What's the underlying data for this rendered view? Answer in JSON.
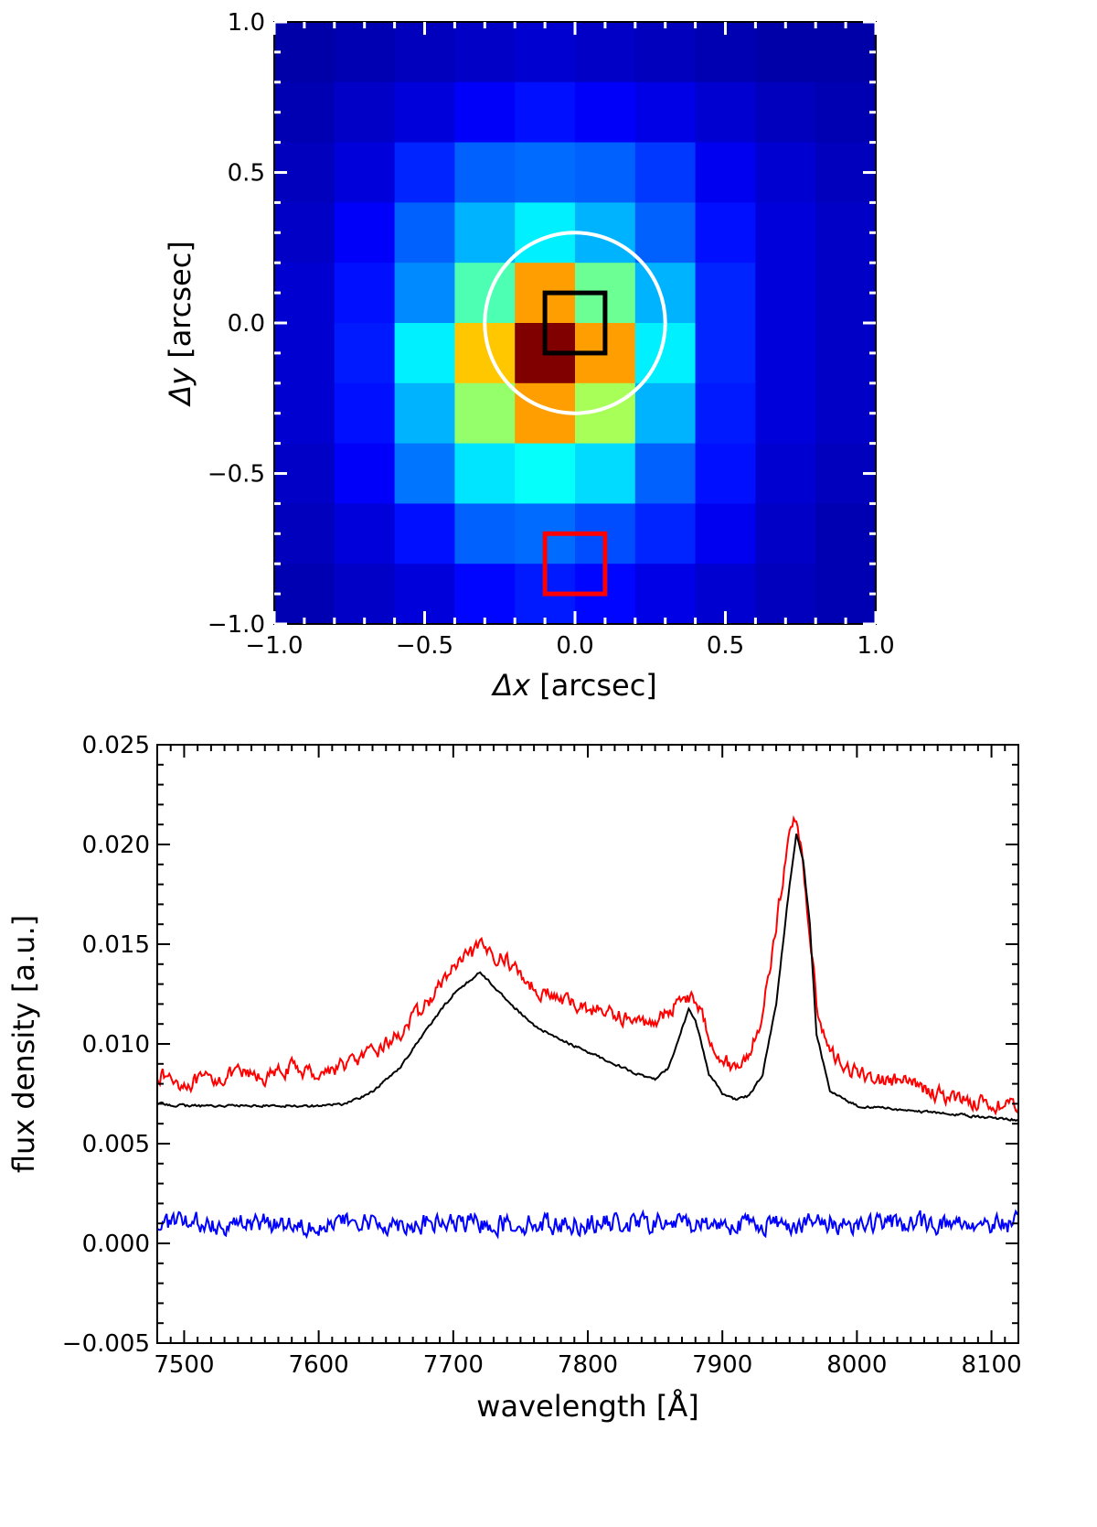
{
  "chart_data": [
    {
      "type": "heatmap",
      "title": "",
      "xlabel_symbol": "Δx",
      "xlabel": "[arcsec]",
      "ylabel_symbol": "Δy",
      "ylabel": "[arcsec]",
      "xlim": [
        -1.0,
        1.0
      ],
      "ylim": [
        -1.0,
        1.0
      ],
      "xticks": [
        -1.0,
        -0.5,
        0.0,
        0.5,
        1.0
      ],
      "xtick_labels": [
        "−1.0",
        "−0.5",
        "0.0",
        "0.5",
        "1.0"
      ],
      "yticks": [
        -1.0,
        -0.5,
        0.0,
        0.5,
        1.0
      ],
      "ytick_labels": [
        "−1.0",
        "−0.5",
        "0.0",
        "0.5",
        "1.0"
      ],
      "pixel_scale_arcsec": 0.2,
      "colormap": "jet",
      "grid_values": [
        [
          0.04,
          0.05,
          0.06,
          0.07,
          0.08,
          0.07,
          0.06,
          0.05,
          0.04,
          0.04
        ],
        [
          0.05,
          0.07,
          0.09,
          0.12,
          0.14,
          0.12,
          0.1,
          0.08,
          0.06,
          0.05
        ],
        [
          0.06,
          0.09,
          0.16,
          0.22,
          0.23,
          0.22,
          0.18,
          0.11,
          0.08,
          0.06
        ],
        [
          0.07,
          0.12,
          0.22,
          0.3,
          0.36,
          0.3,
          0.22,
          0.14,
          0.09,
          0.07
        ],
        [
          0.08,
          0.14,
          0.26,
          0.45,
          0.72,
          0.48,
          0.3,
          0.16,
          0.09,
          0.07
        ],
        [
          0.08,
          0.15,
          0.36,
          0.68,
          1.0,
          0.72,
          0.36,
          0.16,
          0.09,
          0.07
        ],
        [
          0.08,
          0.14,
          0.3,
          0.52,
          0.72,
          0.54,
          0.3,
          0.15,
          0.09,
          0.07
        ],
        [
          0.07,
          0.12,
          0.24,
          0.35,
          0.38,
          0.34,
          0.22,
          0.14,
          0.08,
          0.06
        ],
        [
          0.06,
          0.09,
          0.14,
          0.22,
          0.23,
          0.2,
          0.16,
          0.11,
          0.07,
          0.05
        ],
        [
          0.05,
          0.07,
          0.09,
          0.13,
          0.15,
          0.13,
          0.1,
          0.08,
          0.06,
          0.05
        ]
      ],
      "overlays": [
        {
          "shape": "circle",
          "center": [
            0.0,
            0.0
          ],
          "radius_arcsec": 0.3,
          "color": "#ffffff"
        },
        {
          "shape": "square",
          "center": [
            0.0,
            0.0
          ],
          "size_arcsec": 0.2,
          "color": "#000000"
        },
        {
          "shape": "square",
          "center": [
            0.0,
            -0.8
          ],
          "size_arcsec": 0.2,
          "color": "#ff0000"
        }
      ]
    },
    {
      "type": "line",
      "title": "",
      "xlabel": "wavelength [Å]",
      "ylabel": "flux density [a.u.]",
      "xlim": [
        7480,
        8120
      ],
      "ylim": [
        -0.005,
        0.025
      ],
      "xticks": [
        7500,
        7600,
        7700,
        7800,
        7900,
        8000,
        8100
      ],
      "xtick_labels": [
        "7500",
        "7600",
        "7700",
        "7800",
        "7900",
        "8000",
        "8100"
      ],
      "yticks": [
        -0.005,
        0.0,
        0.005,
        0.01,
        0.015,
        0.02,
        0.025
      ],
      "ytick_labels": [
        "−0.005",
        "0.000",
        "0.005",
        "0.010",
        "0.015",
        "0.020",
        "0.025"
      ],
      "series": [
        {
          "name": "red-box spectrum",
          "color": "#ff0000",
          "x": [
            7480,
            7500,
            7520,
            7540,
            7560,
            7580,
            7600,
            7620,
            7640,
            7660,
            7680,
            7700,
            7720,
            7740,
            7760,
            7780,
            7800,
            7820,
            7840,
            7860,
            7870,
            7880,
            7890,
            7900,
            7910,
            7920,
            7930,
            7940,
            7950,
            7955,
            7960,
            7970,
            7980,
            8000,
            8020,
            8040,
            8060,
            8080,
            8100,
            8120
          ],
          "values": [
            0.0085,
            0.008,
            0.0082,
            0.0085,
            0.0083,
            0.0088,
            0.0085,
            0.009,
            0.0095,
            0.0105,
            0.012,
            0.0138,
            0.0148,
            0.0142,
            0.0128,
            0.0122,
            0.0118,
            0.0115,
            0.011,
            0.0115,
            0.0125,
            0.0122,
            0.0105,
            0.0092,
            0.0088,
            0.0095,
            0.0115,
            0.016,
            0.0205,
            0.0215,
            0.019,
            0.012,
            0.0095,
            0.0085,
            0.0082,
            0.008,
            0.0075,
            0.0072,
            0.007,
            0.0068
          ],
          "noise_amplitude": 0.0006
        },
        {
          "name": "central spectrum",
          "color": "#000000",
          "x": [
            7480,
            7500,
            7550,
            7600,
            7620,
            7640,
            7660,
            7680,
            7700,
            7720,
            7740,
            7760,
            7780,
            7800,
            7820,
            7840,
            7850,
            7860,
            7870,
            7875,
            7880,
            7890,
            7900,
            7910,
            7920,
            7930,
            7940,
            7950,
            7955,
            7960,
            7965,
            7970,
            7980,
            8000,
            8050,
            8100,
            8120
          ],
          "values": [
            0.007,
            0.0069,
            0.0069,
            0.0069,
            0.007,
            0.0076,
            0.0088,
            0.0107,
            0.0125,
            0.0136,
            0.0122,
            0.0109,
            0.0102,
            0.0096,
            0.009,
            0.0084,
            0.0082,
            0.0088,
            0.0108,
            0.0117,
            0.0112,
            0.0085,
            0.0075,
            0.0072,
            0.0074,
            0.0085,
            0.012,
            0.018,
            0.0205,
            0.0192,
            0.016,
            0.0105,
            0.0076,
            0.0069,
            0.0066,
            0.0063,
            0.0062
          ],
          "noise_amplitude": 0.0001
        },
        {
          "name": "blue residual",
          "color": "#0000ff",
          "x": [
            7480,
            8120
          ],
          "values": [
            0.001,
            0.001
          ],
          "noise_amplitude": 0.0008
        }
      ]
    }
  ]
}
